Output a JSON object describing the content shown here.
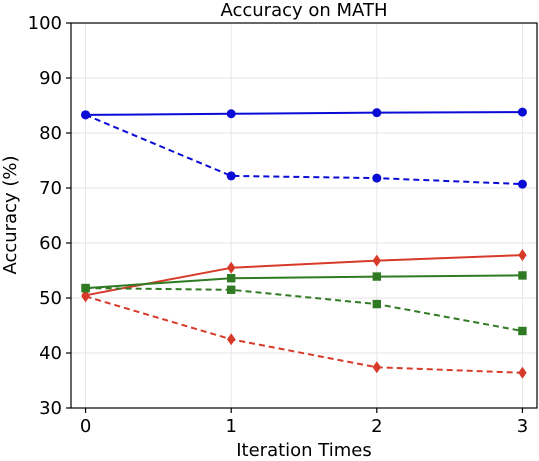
{
  "chart_data": {
    "type": "line",
    "title": "Accuracy on MATH",
    "xlabel": "Iteration Times",
    "ylabel": "Accuracy (%)",
    "x": [
      0,
      1,
      2,
      3
    ],
    "xticks": [
      "0",
      "1",
      "2",
      "3"
    ],
    "xlim": [
      -0.1,
      3.1
    ],
    "ylim": [
      30,
      100
    ],
    "yticks": [
      "30",
      "40",
      "50",
      "60",
      "70",
      "80",
      "90",
      "100"
    ],
    "grid": true,
    "legend": "none",
    "series": [
      {
        "values": [
          83.3,
          83.5,
          83.7,
          83.8
        ],
        "color": "#0b0bd6",
        "linestyle": "solid",
        "marker": "circle"
      },
      {
        "values": [
          83.3,
          72.2,
          71.8,
          70.7
        ],
        "color": "#0b0bd6",
        "linestyle": "dashed",
        "marker": "circle"
      },
      {
        "values": [
          50.5,
          55.5,
          56.8,
          57.8
        ],
        "color": "#d83a2a",
        "linestyle": "solid",
        "marker": "diamond"
      },
      {
        "values": [
          50.3,
          42.5,
          37.4,
          36.4
        ],
        "color": "#d83a2a",
        "linestyle": "dashed",
        "marker": "diamond"
      },
      {
        "values": [
          51.8,
          53.6,
          53.9,
          54.1
        ],
        "color": "#2f7a22",
        "linestyle": "solid",
        "marker": "square"
      },
      {
        "values": [
          51.8,
          51.5,
          48.9,
          44.0
        ],
        "color": "#2f7a22",
        "linestyle": "dashed",
        "marker": "square"
      }
    ]
  }
}
